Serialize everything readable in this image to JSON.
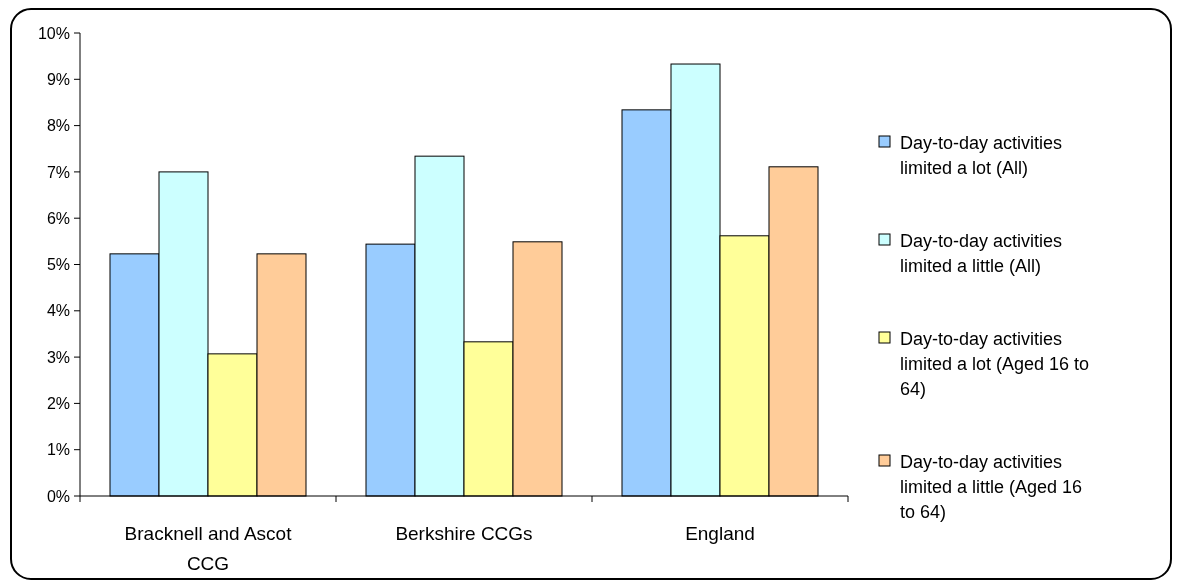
{
  "chart_data": {
    "type": "bar",
    "categories": [
      "Bracknell and Ascot CCG",
      "Berkshire CCGs",
      "England"
    ],
    "series": [
      {
        "name": "Day-to-day activities limited a lot (All)",
        "color": "#99ccff",
        "values": [
          5.23,
          5.44,
          8.34
        ]
      },
      {
        "name": "Day-to-day activities limited a little (All)",
        "color": "#ccffff",
        "values": [
          7.0,
          7.34,
          9.33
        ]
      },
      {
        "name": "Day-to-day activities limited a lot (Aged 16 to 64)",
        "color": "#ffff99",
        "values": [
          3.07,
          3.33,
          5.62
        ]
      },
      {
        "name": "Day-to-day activities limited a little (Aged 16 to 64)",
        "color": "#ffcc99",
        "values": [
          5.23,
          5.49,
          7.11
        ]
      }
    ],
    "ylim": [
      0,
      10
    ],
    "yticks": [
      {
        "value": 0,
        "label": "0%"
      },
      {
        "value": 1,
        "label": "1%"
      },
      {
        "value": 2,
        "label": "2%"
      },
      {
        "value": 3,
        "label": "3%"
      },
      {
        "value": 4,
        "label": "4%"
      },
      {
        "value": 5,
        "label": "5%"
      },
      {
        "value": 6,
        "label": "6%"
      },
      {
        "value": 7,
        "label": "7%"
      },
      {
        "value": 8,
        "label": "8%"
      },
      {
        "value": 9,
        "label": "9%"
      },
      {
        "value": 10,
        "label": "10%"
      }
    ],
    "grid": false,
    "legend": "right"
  }
}
